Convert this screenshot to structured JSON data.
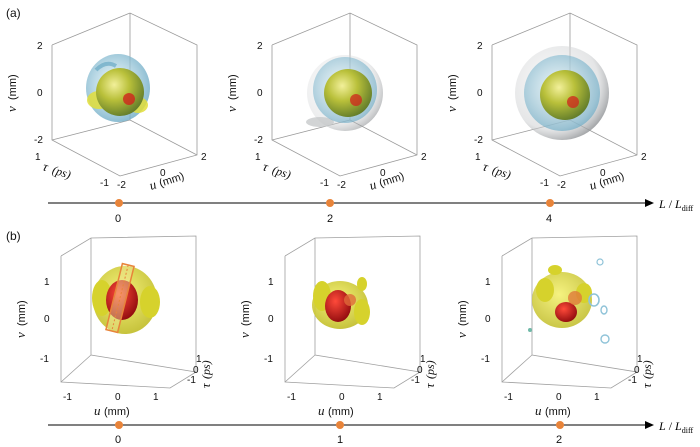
{
  "panel_a": {
    "label": "(a)",
    "v_ticks": [
      "2",
      "0",
      "-2"
    ],
    "u_ticks": [
      "-2",
      "0",
      "2"
    ],
    "tau_ticks": [
      "1",
      "-1"
    ],
    "v_axis_symbol": "v",
    "v_axis_unit": "(mm)",
    "u_axis_symbol": "u",
    "u_axis_unit": "(mm)",
    "tau_axis_symbol": "τ",
    "tau_axis_unit": "(ps)",
    "timeline_marks": [
      "0",
      "2",
      "4"
    ]
  },
  "panel_b": {
    "label": "(b)",
    "v_ticks": [
      "1",
      "0",
      "-1"
    ],
    "u_ticks": [
      "-1",
      "0",
      "1"
    ],
    "tau_ticks": [
      "1",
      "0",
      "-1"
    ],
    "v_axis_symbol": "v",
    "v_axis_unit": "(mm)",
    "u_axis_symbol": "u",
    "u_axis_unit": "(mm)",
    "tau_axis_symbol": "τ",
    "tau_axis_unit": "(ps)",
    "timeline_marks": [
      "0",
      "1",
      "2"
    ]
  },
  "timeline_label": {
    "L": "L",
    "slash": " / ",
    "Ldiff": "L",
    "sub": "diff"
  },
  "colors": {
    "marker": "#e8843a",
    "gold": "#d9d31f",
    "red": "#c8141a",
    "blue": "#8fc3d8",
    "gray": "#b9bcbf"
  }
}
